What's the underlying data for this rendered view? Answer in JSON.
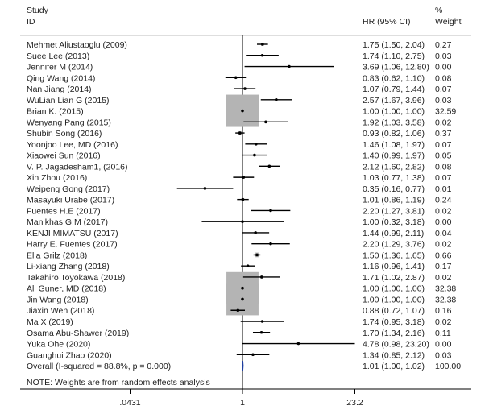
{
  "chart_data": {
    "type": "forest",
    "scale": "log",
    "xlim": [
      0.0431,
      23.2
    ],
    "x_ticks": [
      ".0431",
      "1",
      "23.2"
    ],
    "reference_line": 1,
    "headers": {
      "study_1": "Study",
      "study_2": "ID",
      "effect": "HR (95% CI)",
      "weight_1": "%",
      "weight_2": "Weight"
    },
    "studies": [
      {
        "id": "Mehmet Aliustaoglu (2009)",
        "hr": 1.75,
        "lo": 1.5,
        "hi": 2.04,
        "label": "1.75 (1.50, 2.04)",
        "weight": "0.27"
      },
      {
        "id": "Suee Lee  (2013)",
        "hr": 1.74,
        "lo": 1.1,
        "hi": 2.75,
        "label": "1.74 (1.10, 2.75)",
        "weight": "0.03"
      },
      {
        "id": "Jennifer M (2014)",
        "hr": 3.69,
        "lo": 1.06,
        "hi": 12.8,
        "label": "3.69 (1.06, 12.80)",
        "weight": "0.00"
      },
      {
        "id": "Qing Wang (2014)",
        "hr": 0.83,
        "lo": 0.62,
        "hi": 1.1,
        "label": "0.83 (0.62, 1.10)",
        "weight": "0.08"
      },
      {
        "id": "Nan Jiang (2014)",
        "hr": 1.07,
        "lo": 0.79,
        "hi": 1.44,
        "label": "1.07 (0.79, 1.44)",
        "weight": "0.07"
      },
      {
        "id": "WuLian Lian G (2015)",
        "hr": 2.57,
        "lo": 1.67,
        "hi": 3.96,
        "label": "2.57 (1.67, 3.96)",
        "weight": "0.03"
      },
      {
        "id": "Brian K. (2015)",
        "hr": 1.0,
        "lo": 1.0,
        "hi": 1.0,
        "label": "1.00 (1.00, 1.00)",
        "weight": "32.59"
      },
      {
        "id": "Wenyang Pang (2015)",
        "hr": 1.92,
        "lo": 1.03,
        "hi": 3.58,
        "label": "1.92 (1.03, 3.58)",
        "weight": "0.02"
      },
      {
        "id": "Shubin Song (2016)",
        "hr": 0.93,
        "lo": 0.82,
        "hi": 1.06,
        "label": "0.93 (0.82, 1.06)",
        "weight": "0.37"
      },
      {
        "id": "Yoonjoo Lee, MD (2016)",
        "hr": 1.46,
        "lo": 1.08,
        "hi": 1.97,
        "label": "1.46 (1.08, 1.97)",
        "weight": "0.07"
      },
      {
        "id": "Xiaowei Sun (2016)",
        "hr": 1.4,
        "lo": 0.99,
        "hi": 1.97,
        "label": "1.40 (0.99, 1.97)",
        "weight": "0.05"
      },
      {
        "id": "V. P. Jagadesham1, (2016)",
        "hr": 2.12,
        "lo": 1.6,
        "hi": 2.82,
        "label": "2.12 (1.60, 2.82)",
        "weight": "0.08"
      },
      {
        "id": "Xin Zhou  (2016)",
        "hr": 1.03,
        "lo": 0.77,
        "hi": 1.38,
        "label": "1.03 (0.77, 1.38)",
        "weight": "0.07"
      },
      {
        "id": "Weipeng Gong (2017)",
        "hr": 0.35,
        "lo": 0.16,
        "hi": 0.77,
        "label": "0.35 (0.16, 0.77)",
        "weight": "0.01"
      },
      {
        "id": "Masayuki Urabe (2017)",
        "hr": 1.01,
        "lo": 0.86,
        "hi": 1.19,
        "label": "1.01 (0.86, 1.19)",
        "weight": "0.24"
      },
      {
        "id": "Fuentes H.E (2017)",
        "hr": 2.2,
        "lo": 1.27,
        "hi": 3.81,
        "label": "2.20 (1.27, 3.81)",
        "weight": "0.02"
      },
      {
        "id": "Manikhas G.M (2017)",
        "hr": 1.0,
        "lo": 0.32,
        "hi": 3.18,
        "label": "1.00 (0.32, 3.18)",
        "weight": "0.00"
      },
      {
        "id": "KENJI MIMATSU  (2017)",
        "hr": 1.44,
        "lo": 0.99,
        "hi": 2.11,
        "label": "1.44 (0.99, 2.11)",
        "weight": "0.04"
      },
      {
        "id": "Harry E. Fuentes  (2017)",
        "hr": 2.2,
        "lo": 1.29,
        "hi": 3.76,
        "label": "2.20 (1.29, 3.76)",
        "weight": "0.02"
      },
      {
        "id": "Ella Grilz  (2018)",
        "hr": 1.5,
        "lo": 1.36,
        "hi": 1.65,
        "label": "1.50 (1.36, 1.65)",
        "weight": "0.66"
      },
      {
        "id": "Li-xiang Zhang  (2018)",
        "hr": 1.16,
        "lo": 0.96,
        "hi": 1.41,
        "label": "1.16 (0.96, 1.41)",
        "weight": "0.17"
      },
      {
        "id": "Takahiro Toyokawa (2018)",
        "hr": 1.71,
        "lo": 1.02,
        "hi": 2.87,
        "label": "1.71 (1.02, 2.87)",
        "weight": "0.02"
      },
      {
        "id": "Ali Guner, MD (2018)",
        "hr": 1.0,
        "lo": 1.0,
        "hi": 1.0,
        "label": "1.00 (1.00, 1.00)",
        "weight": "32.38"
      },
      {
        "id": "Jin Wang (2018)",
        "hr": 1.0,
        "lo": 1.0,
        "hi": 1.0,
        "label": "1.00 (1.00, 1.00)",
        "weight": "32.38"
      },
      {
        "id": "Jiaxin Wen (2018)",
        "hr": 0.88,
        "lo": 0.72,
        "hi": 1.07,
        "label": "0.88 (0.72, 1.07)",
        "weight": "0.16"
      },
      {
        "id": "Ma X (2019)",
        "hr": 1.74,
        "lo": 0.95,
        "hi": 3.18,
        "label": "1.74 (0.95, 3.18)",
        "weight": "0.02"
      },
      {
        "id": "Osama Abu-Shawer  (2019)",
        "hr": 1.7,
        "lo": 1.34,
        "hi": 2.16,
        "label": "1.70 (1.34, 2.16)",
        "weight": "0.11"
      },
      {
        "id": "Yuka Ohe (2020)",
        "hr": 4.78,
        "lo": 0.98,
        "hi": 23.2,
        "label": "4.78 (0.98, 23.20)",
        "weight": "0.00"
      },
      {
        "id": "Guanghui Zhao (2020)",
        "hr": 1.34,
        "lo": 0.85,
        "hi": 2.12,
        "label": "1.34 (0.85, 2.12)",
        "weight": "0.03"
      }
    ],
    "overall": {
      "id": "Overall  (I-squared = 88.8%, p = 0.000)",
      "hr": 1.01,
      "lo": 1.0,
      "hi": 1.02,
      "label": "1.01 (1.00, 1.02)",
      "weight": "100.00"
    },
    "note": "NOTE: Weights are from random effects analysis",
    "colors": {
      "box": "#b4b4b4",
      "line": "#000000",
      "diamond": "#1f3f9f",
      "rule": "#bdbdbd"
    }
  }
}
